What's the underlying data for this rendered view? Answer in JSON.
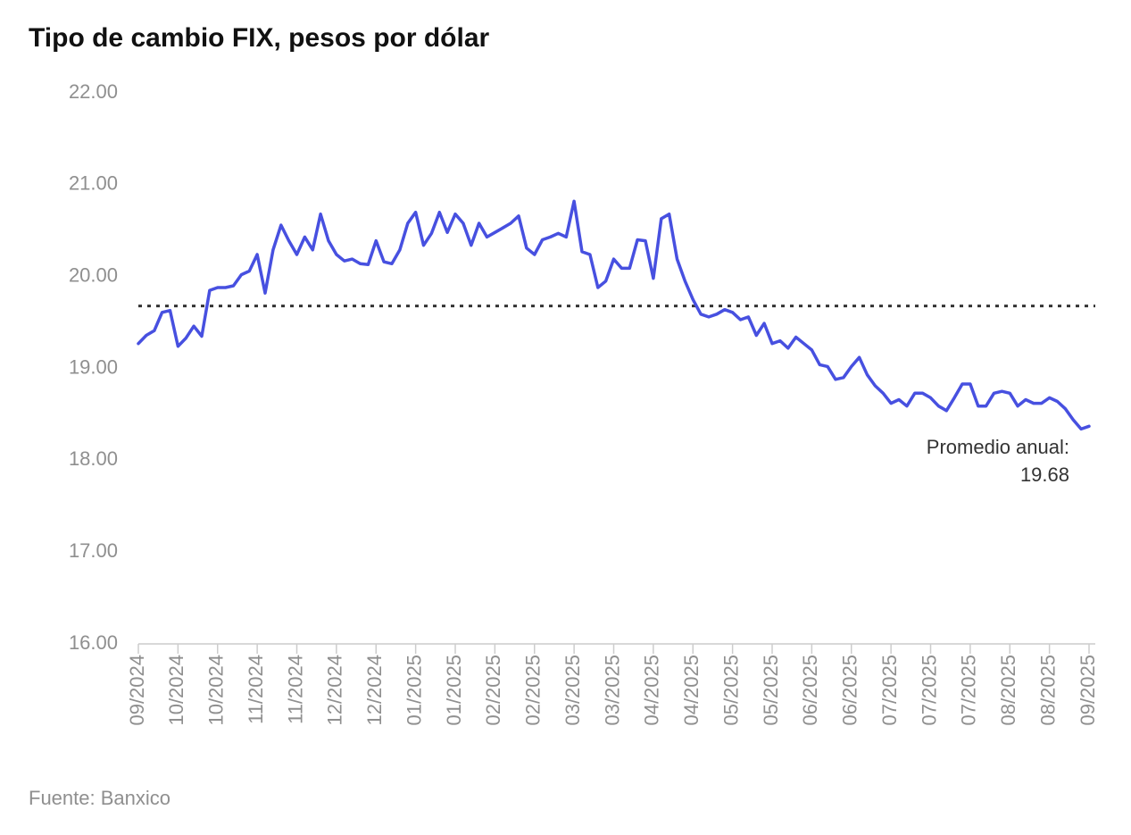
{
  "chart_data": {
    "type": "line",
    "title": "Tipo de cambio FIX, pesos por dólar",
    "source": "Fuente: Banxico",
    "categories": [
      "09/2024",
      null,
      null,
      null,
      null,
      "10/2024",
      null,
      null,
      null,
      null,
      "10/2024",
      null,
      null,
      null,
      null,
      "11/2024",
      null,
      null,
      null,
      null,
      "11/2024",
      null,
      null,
      null,
      null,
      "12/2024",
      null,
      null,
      null,
      null,
      "12/2024",
      null,
      null,
      null,
      null,
      "01/2025",
      null,
      null,
      null,
      null,
      "01/2025",
      null,
      null,
      null,
      null,
      "02/2025",
      null,
      null,
      null,
      null,
      "02/2025",
      null,
      null,
      null,
      null,
      "03/2025",
      null,
      null,
      null,
      null,
      "03/2025",
      null,
      null,
      null,
      null,
      "04/2025",
      null,
      null,
      null,
      null,
      "04/2025",
      null,
      null,
      null,
      null,
      "05/2025",
      null,
      null,
      null,
      null,
      "05/2025",
      null,
      null,
      null,
      null,
      "06/2025",
      null,
      null,
      null,
      null,
      "06/2025",
      null,
      null,
      null,
      null,
      "07/2025",
      null,
      null,
      null,
      null,
      "07/2025",
      null,
      null,
      null,
      null,
      "07/2025",
      null,
      null,
      null,
      null,
      "08/2025",
      null,
      null,
      null,
      null,
      "08/2025",
      null,
      null,
      null,
      null,
      "09/2025"
    ],
    "series": [
      {
        "name": "FIX",
        "color": "#4750e0",
        "values": [
          19.27,
          19.36,
          19.41,
          19.61,
          19.63,
          19.24,
          19.33,
          19.46,
          19.35,
          19.85,
          19.88,
          19.88,
          19.9,
          20.02,
          20.06,
          20.24,
          19.82,
          20.29,
          20.56,
          20.39,
          20.24,
          20.43,
          20.29,
          20.68,
          20.39,
          20.24,
          20.17,
          20.19,
          20.14,
          20.13,
          20.39,
          20.16,
          20.14,
          20.29,
          20.58,
          20.7,
          20.34,
          20.47,
          20.7,
          20.48,
          20.68,
          20.58,
          20.34,
          20.58,
          20.43,
          20.48,
          20.53,
          20.58,
          20.66,
          20.31,
          20.24,
          20.4,
          20.43,
          20.47,
          20.43,
          20.82,
          20.27,
          20.24,
          19.88,
          19.95,
          20.19,
          20.09,
          20.09,
          20.4,
          20.39,
          19.98,
          20.63,
          20.68,
          20.19,
          19.95,
          19.75,
          19.59,
          19.56,
          19.59,
          19.64,
          19.61,
          19.53,
          19.56,
          19.36,
          19.49,
          19.27,
          19.3,
          19.22,
          19.34,
          19.27,
          19.2,
          19.04,
          19.02,
          18.88,
          18.9,
          19.02,
          19.12,
          18.93,
          18.81,
          18.73,
          18.62,
          18.66,
          18.59,
          18.73,
          18.73,
          18.68,
          18.59,
          18.54,
          18.68,
          18.83,
          18.83,
          18.59,
          18.59,
          18.73,
          18.75,
          18.73,
          18.59,
          18.66,
          18.62,
          18.62,
          18.68,
          18.64,
          18.56,
          18.44,
          18.34,
          18.37
        ]
      }
    ],
    "average": {
      "label": "Promedio anual:",
      "value": 19.68
    },
    "ylim": [
      16,
      22
    ],
    "yticks": [
      {
        "value": 16,
        "label": "16.00"
      },
      {
        "value": 17,
        "label": "17.00"
      },
      {
        "value": 18,
        "label": "18.00"
      },
      {
        "value": 19,
        "label": "19.00"
      },
      {
        "value": 20,
        "label": "20.00"
      },
      {
        "value": 21,
        "label": "21.00"
      },
      {
        "value": 22,
        "label": "22.00"
      }
    ],
    "grid": false
  }
}
